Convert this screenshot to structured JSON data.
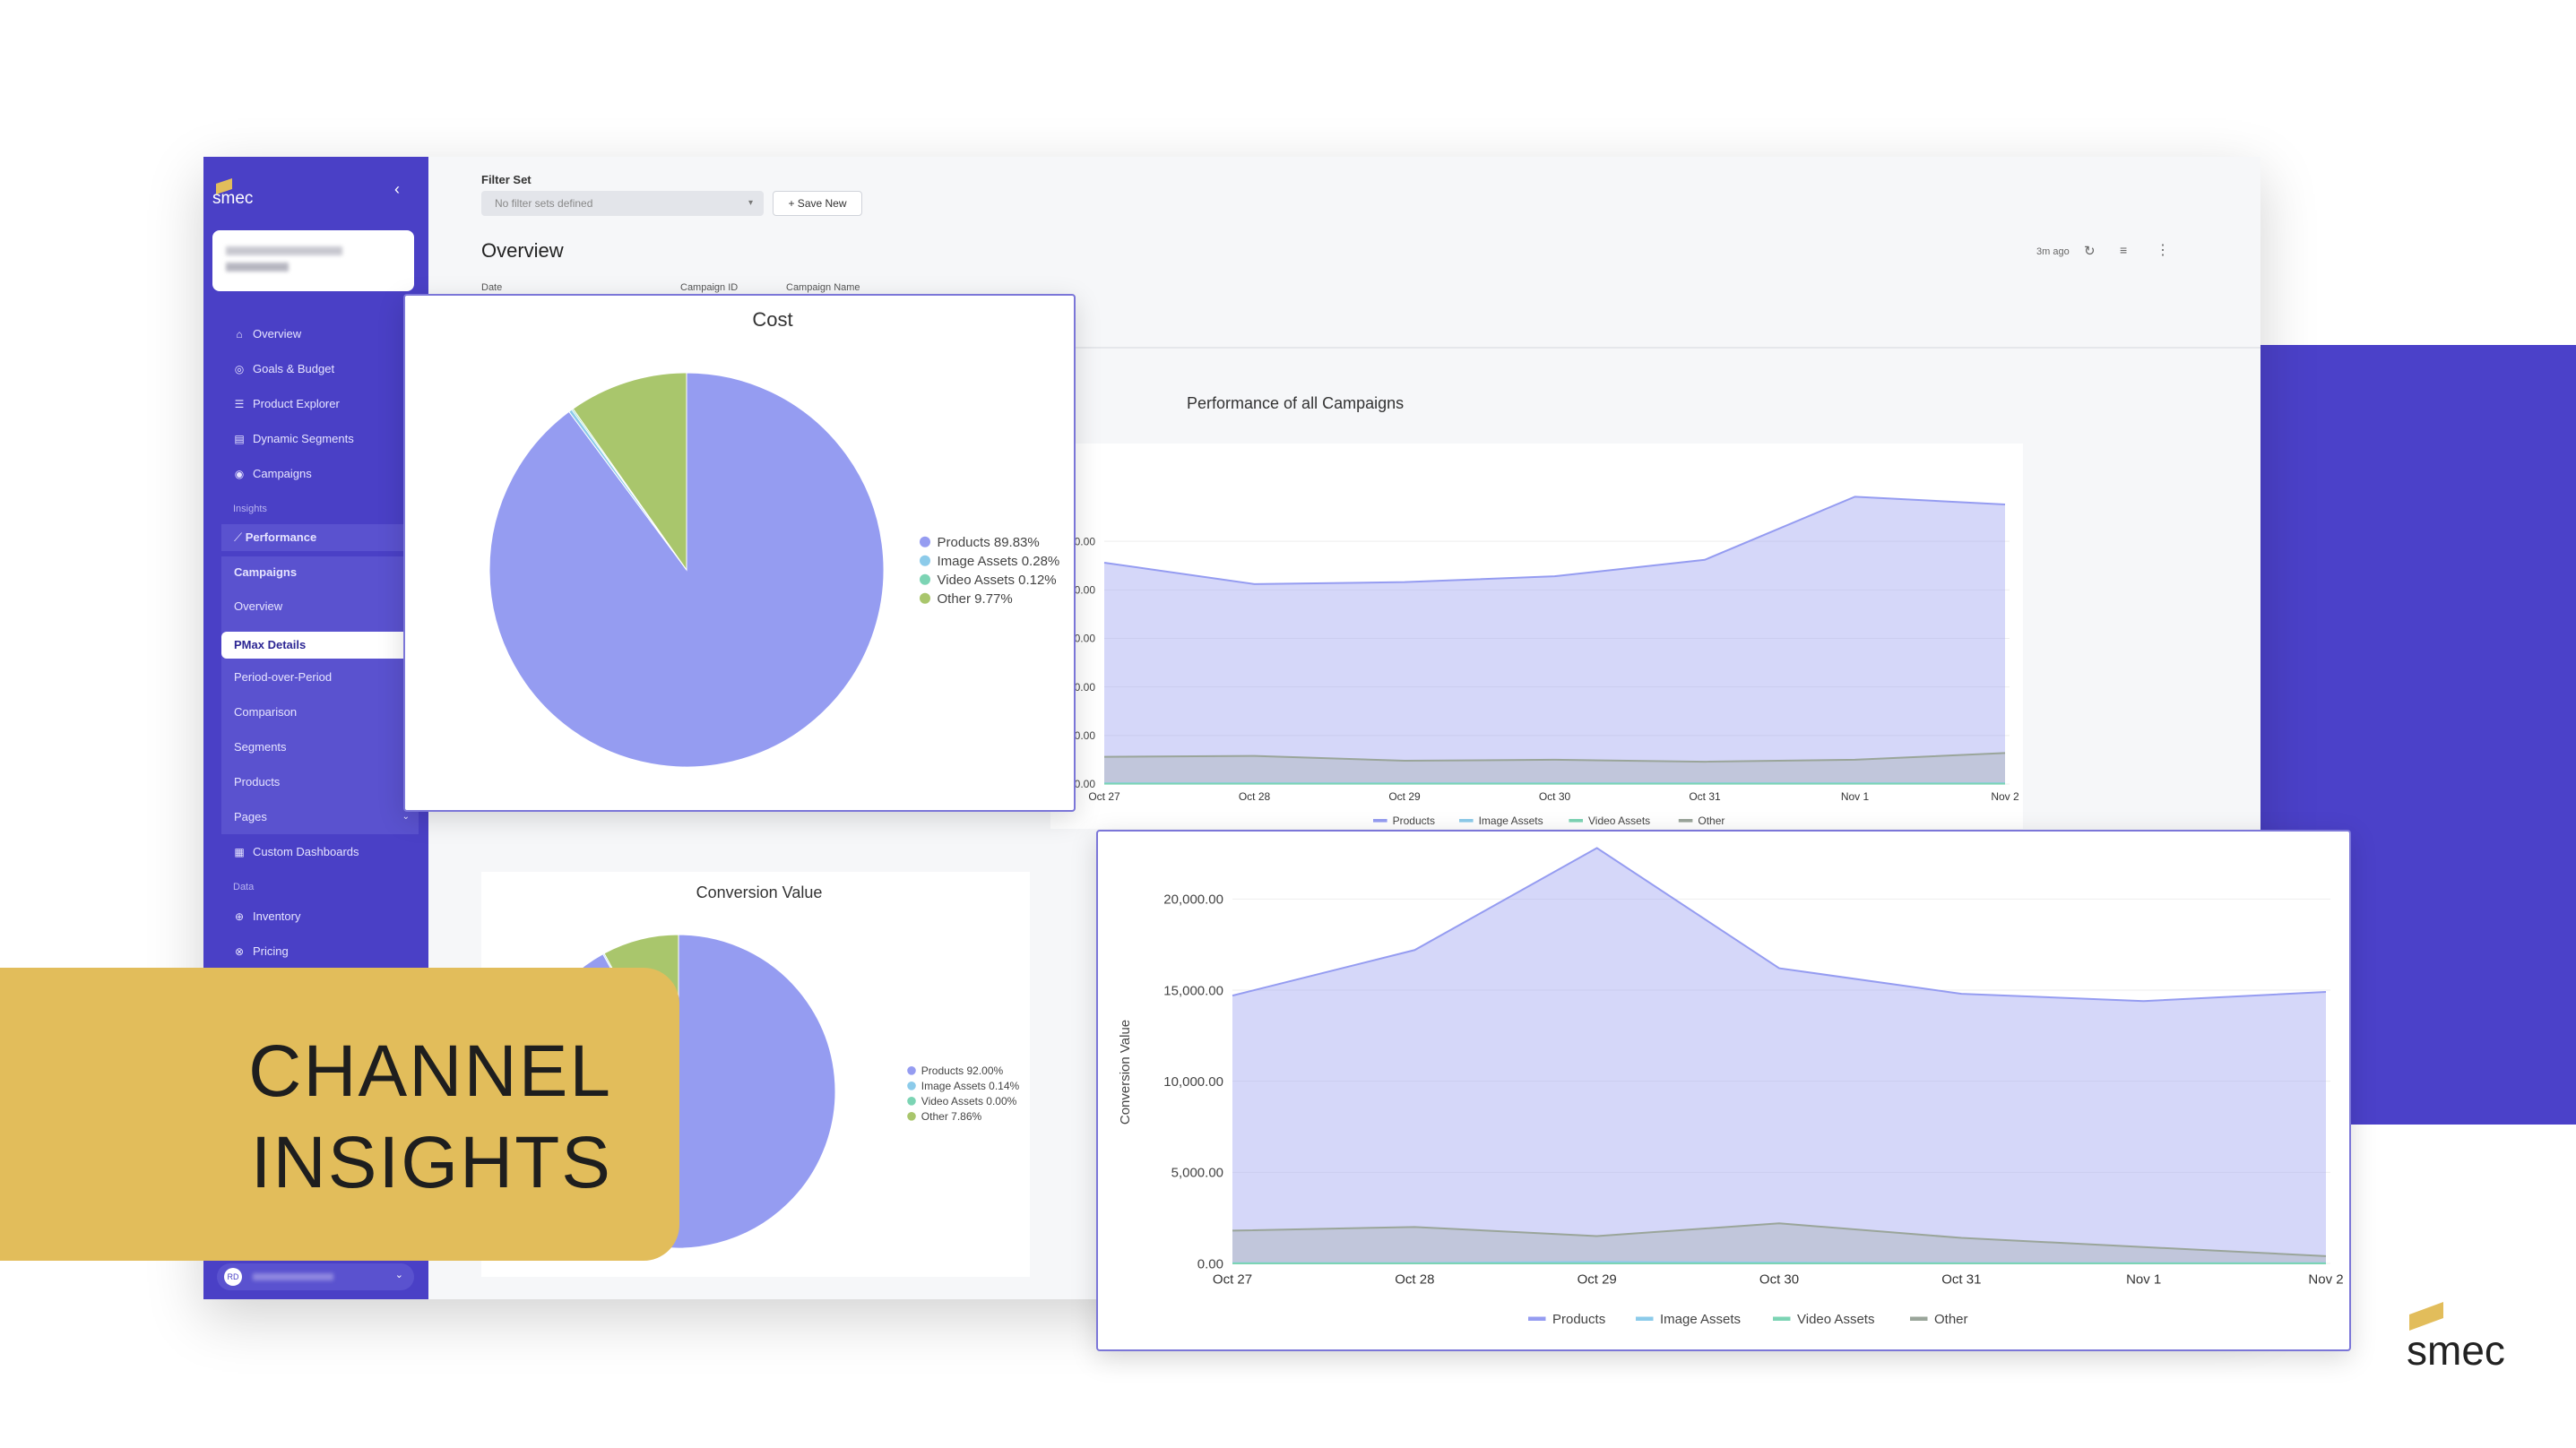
{
  "brand": {
    "name": "smec"
  },
  "sidebar": {
    "logo_text": "smec",
    "nav": [
      {
        "label": "Overview",
        "icon": "home-icon"
      },
      {
        "label": "Goals & Budget",
        "icon": "target-icon"
      },
      {
        "label": "Product Explorer",
        "icon": "list-icon"
      },
      {
        "label": "Dynamic Segments",
        "icon": "segments-icon"
      },
      {
        "label": "Campaigns",
        "icon": "campaign-icon"
      }
    ],
    "section_insights": "Insights",
    "performance": "Performance",
    "campaigns": "Campaigns",
    "campaign_sub": [
      "Overview",
      "PMax Details",
      "Period-over-Period",
      "Comparison"
    ],
    "groups": [
      "Segments",
      "Products",
      "Pages"
    ],
    "custom_dashboards": "Custom Dashboards",
    "section_data": "Data",
    "data_items": [
      "Inventory",
      "Pricing"
    ],
    "user_initials": "RD"
  },
  "header": {
    "filter_set_label": "Filter Set",
    "filter_set_placeholder": "No filter sets defined",
    "save_new": "+ Save New",
    "title": "Overview",
    "updated": "3m ago",
    "columns": [
      "Date",
      "Campaign ID",
      "Campaign Name"
    ]
  },
  "perf_title": "Performance of all Campaigns",
  "headline": {
    "line1": "CHANNEL",
    "line2": "INSIGHTS"
  },
  "colors": {
    "products": "#959cf1",
    "image_assets": "#8ccbea",
    "video_assets": "#7cd4b4",
    "other": "#a9c66c",
    "accent": "#4b41c9",
    "gold": "#e2bd5b"
  },
  "chart_data": [
    {
      "type": "pie",
      "title": "Cost",
      "labels": [
        "Products",
        "Image Assets",
        "Video Assets",
        "Other"
      ],
      "values": [
        89.83,
        0.28,
        0.12,
        9.77
      ],
      "legend_text": [
        "Products 89.83%",
        "Image Assets 0.28%",
        "Video Assets 0.12%",
        "Other 9.77%"
      ]
    },
    {
      "type": "pie",
      "title": "Conversion Value",
      "labels": [
        "Products",
        "Image Assets",
        "Video Assets",
        "Other"
      ],
      "values": [
        92.0,
        0.14,
        0.0,
        7.86
      ],
      "legend_text": [
        "Products 92.00%",
        "Image Assets 0.14%",
        "Video Assets 0.00%",
        "Other 7.86%"
      ]
    },
    {
      "type": "area",
      "title": "",
      "x": [
        "Oct 27",
        "Oct 28",
        "Oct 29",
        "Oct 30",
        "Oct 31",
        "Nov 1",
        "Nov 2"
      ],
      "ylim": [
        0,
        3000
      ],
      "yticks": [
        "0.00",
        "500.00",
        "1,000.00",
        "1,500.00",
        "2,000.00",
        "2,500.00"
      ],
      "series": [
        {
          "name": "Products",
          "values": [
            2280,
            2060,
            2080,
            2140,
            2310,
            2960,
            2880
          ]
        },
        {
          "name": "Image Assets",
          "values": [
            8,
            8,
            8,
            8,
            8,
            8,
            8
          ]
        },
        {
          "name": "Video Assets",
          "values": [
            3,
            3,
            3,
            3,
            3,
            3,
            3
          ]
        },
        {
          "name": "Other",
          "values": [
            280,
            290,
            240,
            250,
            230,
            250,
            320
          ]
        }
      ]
    },
    {
      "type": "area",
      "title": "",
      "ylabel": "Conversion Value",
      "x": [
        "Oct 27",
        "Oct 28",
        "Oct 29",
        "Oct 30",
        "Oct 31",
        "Nov 1",
        "Nov 2"
      ],
      "ylim": [
        0,
        21000
      ],
      "yticks": [
        "0.00",
        "5,000.00",
        "10,000.00",
        "15,000.00",
        "20,000.00"
      ],
      "series": [
        {
          "name": "Products",
          "values": [
            14700,
            17200,
            22800,
            16200,
            14800,
            14400,
            14900
          ]
        },
        {
          "name": "Image Assets",
          "values": [
            20,
            20,
            80,
            40,
            20,
            20,
            20
          ]
        },
        {
          "name": "Video Assets",
          "values": [
            0,
            0,
            0,
            0,
            0,
            0,
            0
          ]
        },
        {
          "name": "Other",
          "values": [
            1800,
            2000,
            1500,
            2200,
            1400,
            900,
            400
          ]
        }
      ]
    }
  ]
}
